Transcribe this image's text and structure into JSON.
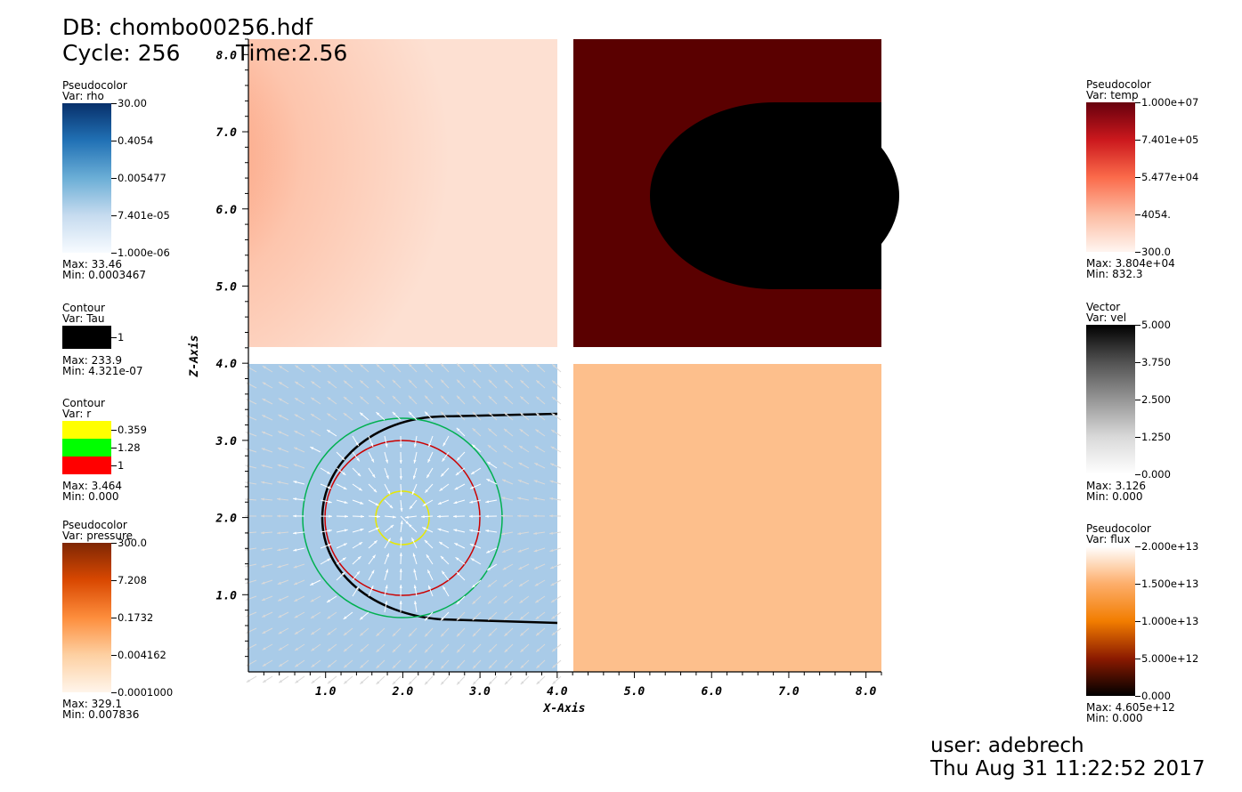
{
  "header": {
    "db": "DB: chombo00256.hdf",
    "cycle": "Cycle: 256",
    "time": "Time:2.56"
  },
  "legends_left": [
    {
      "title": "Pseudocolor",
      "var": "Var: rho",
      "gradient": [
        "#08306b",
        "#2171b5",
        "#6baed6",
        "#c6dbef",
        "#f7fbff"
      ],
      "ticks": [
        "30.00",
        "0.4054",
        "0.005477",
        "7.401e-05",
        "1.000e-06"
      ],
      "max": "Max:  33.46",
      "min": "Min:  0.0003467"
    },
    {
      "title": "Contour",
      "var": "Var: Tau",
      "color": "#000000",
      "ticks": [
        "1"
      ],
      "max": "Max:  233.9",
      "min": "Min:  4.321e-07"
    },
    {
      "title": "Contour",
      "var": "Var: r",
      "colors": [
        "#ffff00",
        "#00ff00",
        "#ff0000"
      ],
      "ticks": [
        "0.359",
        "1.28",
        "1"
      ],
      "max": "Max:  3.464",
      "min": "Min:  0.000"
    },
    {
      "title": "Pseudocolor",
      "var": "Var: pressure",
      "gradient": [
        "#7f2704",
        "#d94801",
        "#fd8d3c",
        "#fdd0a2",
        "#fff5eb"
      ],
      "ticks": [
        "300.0",
        "7.208",
        "0.1732",
        "0.004162",
        "0.0001000"
      ],
      "max": "Max:  329.1",
      "min": "Min:  0.007836"
    }
  ],
  "legends_right": [
    {
      "title": "Pseudocolor",
      "var": "Var: temp",
      "gradient": [
        "#67000d",
        "#cb181d",
        "#fb6a4a",
        "#fcbba1",
        "#fff5f0"
      ],
      "ticks": [
        "1.000e+07",
        "7.401e+05",
        "5.477e+04",
        "4054.",
        "300.0"
      ],
      "max": "Max:  3.804e+04",
      "min": "Min:  832.3"
    },
    {
      "title": "Vector",
      "var": "Var: vel",
      "gradient": [
        "#000000",
        "#525252",
        "#969696",
        "#d9d9d9",
        "#ffffff"
      ],
      "ticks": [
        "5.000",
        "3.750",
        "2.500",
        "1.250",
        "0.000"
      ],
      "max": "Max:  3.126",
      "min": "Min:  0.000"
    },
    {
      "title": "Pseudocolor",
      "var": "Var: flux",
      "gradient": [
        "#ffffff",
        "#fdae6b",
        "#f27d00",
        "#8b1a00",
        "#000000"
      ],
      "ticks": [
        "2.000e+13",
        "1.500e+13",
        "1.000e+13",
        "5.000e+12",
        "0.000"
      ],
      "max": "Max:  4.605e+12",
      "min": "Min:  0.000"
    }
  ],
  "plot": {
    "xlabel": "X-Axis",
    "ylabel": "Z-Axis",
    "xticks": [
      "1.0",
      "2.0",
      "3.0",
      "4.0",
      "5.0",
      "6.0",
      "7.0",
      "8.0"
    ],
    "yticks": [
      "1.0",
      "2.0",
      "3.0",
      "4.0",
      "5.0",
      "6.0",
      "7.0",
      "8.0"
    ],
    "xrange": [
      0,
      8.2
    ],
    "yrange": [
      0,
      8.2
    ]
  },
  "footer": {
    "user": "user: adebrech",
    "date": "Thu Aug 31 11:22:52 2017"
  }
}
